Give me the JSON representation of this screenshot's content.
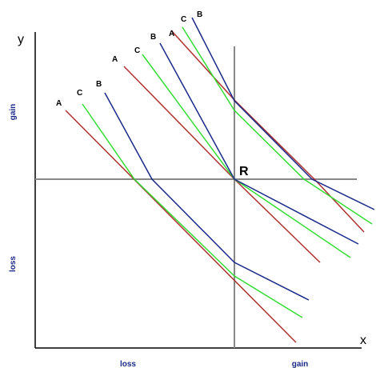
{
  "axis_labels": {
    "y": "y",
    "x": "x",
    "y_gain": "gain",
    "y_loss": "loss",
    "x_loss": "loss",
    "x_gain": "gain"
  },
  "point": "R",
  "line_labels": [
    "A",
    "C",
    "B",
    "A",
    "C",
    "B",
    "A",
    "C",
    "B"
  ]
}
